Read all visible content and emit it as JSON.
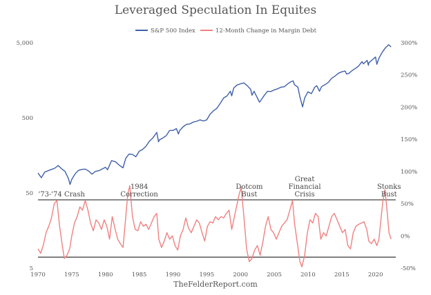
{
  "chart_data": {
    "type": "line",
    "title": "Leveraged Speculation In Equites",
    "source": "TheFelderReport.com",
    "legend_placement": "top-center",
    "series": [
      {
        "name": "S&P 500 Index",
        "color": "#3d5fa8",
        "axis": "left",
        "scale": "log",
        "points": [
          [
            1970.0,
            92
          ],
          [
            1970.5,
            80
          ],
          [
            1971.0,
            95
          ],
          [
            1971.5,
            99
          ],
          [
            1972.0,
            103
          ],
          [
            1972.5,
            107
          ],
          [
            1973.0,
            116
          ],
          [
            1973.5,
            105
          ],
          [
            1974.0,
            97
          ],
          [
            1974.5,
            78
          ],
          [
            1974.75,
            65
          ],
          [
            1975.0,
            76
          ],
          [
            1975.5,
            90
          ],
          [
            1976.0,
            100
          ],
          [
            1976.5,
            103
          ],
          [
            1977.0,
            104
          ],
          [
            1977.5,
            98
          ],
          [
            1978.0,
            89
          ],
          [
            1978.5,
            97
          ],
          [
            1979.0,
            99
          ],
          [
            1979.5,
            104
          ],
          [
            1980.0,
            110
          ],
          [
            1980.3,
            102
          ],
          [
            1980.9,
            135
          ],
          [
            1981.5,
            130
          ],
          [
            1982.0,
            118
          ],
          [
            1982.6,
            108
          ],
          [
            1983.0,
            145
          ],
          [
            1983.5,
            165
          ],
          [
            1984.0,
            163
          ],
          [
            1984.5,
            152
          ],
          [
            1985.0,
            180
          ],
          [
            1985.5,
            190
          ],
          [
            1986.0,
            210
          ],
          [
            1986.5,
            245
          ],
          [
            1987.0,
            270
          ],
          [
            1987.6,
            320
          ],
          [
            1987.85,
            240
          ],
          [
            1988.0,
            255
          ],
          [
            1988.5,
            270
          ],
          [
            1989.0,
            290
          ],
          [
            1989.5,
            340
          ],
          [
            1990.0,
            340
          ],
          [
            1990.5,
            360
          ],
          [
            1990.8,
            305
          ],
          [
            1991.0,
            340
          ],
          [
            1991.5,
            380
          ],
          [
            1992.0,
            410
          ],
          [
            1992.5,
            415
          ],
          [
            1993.0,
            440
          ],
          [
            1993.5,
            450
          ],
          [
            1994.0,
            470
          ],
          [
            1994.5,
            455
          ],
          [
            1995.0,
            470
          ],
          [
            1995.5,
            560
          ],
          [
            1996.0,
            620
          ],
          [
            1996.5,
            670
          ],
          [
            1997.0,
            780
          ],
          [
            1997.5,
            920
          ],
          [
            1998.0,
            980
          ],
          [
            1998.5,
            1130
          ],
          [
            1998.7,
            980
          ],
          [
            1999.0,
            1250
          ],
          [
            1999.5,
            1370
          ],
          [
            2000.0,
            1420
          ],
          [
            2000.5,
            1460
          ],
          [
            2001.0,
            1340
          ],
          [
            2001.5,
            1200
          ],
          [
            2001.7,
            1000
          ],
          [
            2002.0,
            1130
          ],
          [
            2002.5,
            920
          ],
          [
            2002.8,
            810
          ],
          [
            2003.0,
            850
          ],
          [
            2003.5,
            990
          ],
          [
            2004.0,
            1130
          ],
          [
            2004.5,
            1120
          ],
          [
            2005.0,
            1180
          ],
          [
            2005.5,
            1220
          ],
          [
            2006.0,
            1280
          ],
          [
            2006.5,
            1300
          ],
          [
            2007.0,
            1420
          ],
          [
            2007.5,
            1520
          ],
          [
            2007.8,
            1550
          ],
          [
            2008.0,
            1380
          ],
          [
            2008.5,
            1280
          ],
          [
            2008.8,
            950
          ],
          [
            2009.2,
            700
          ],
          [
            2009.5,
            920
          ],
          [
            2010.0,
            1110
          ],
          [
            2010.5,
            1050
          ],
          [
            2011.0,
            1280
          ],
          [
            2011.3,
            1340
          ],
          [
            2011.7,
            1130
          ],
          [
            2012.0,
            1300
          ],
          [
            2012.5,
            1380
          ],
          [
            2013.0,
            1480
          ],
          [
            2013.5,
            1680
          ],
          [
            2014.0,
            1800
          ],
          [
            2014.5,
            1960
          ],
          [
            2015.0,
            2050
          ],
          [
            2015.5,
            2100
          ],
          [
            2015.7,
            1920
          ],
          [
            2016.0,
            1940
          ],
          [
            2016.5,
            2120
          ],
          [
            2017.0,
            2270
          ],
          [
            2017.5,
            2450
          ],
          [
            2018.0,
            2800
          ],
          [
            2018.2,
            2620
          ],
          [
            2018.75,
            2910
          ],
          [
            2018.95,
            2500
          ],
          [
            2019.0,
            2700
          ],
          [
            2019.5,
            2950
          ],
          [
            2020.0,
            3230
          ],
          [
            2020.2,
            2580
          ],
          [
            2020.5,
            3100
          ],
          [
            2021.0,
            3750
          ],
          [
            2021.5,
            4300
          ],
          [
            2021.95,
            4700
          ],
          [
            2022.3,
            4400
          ]
        ]
      },
      {
        "name": "12-Month Change in Margin Debt",
        "color": "#f08080",
        "axis": "right",
        "points": [
          [
            1970.0,
            -20
          ],
          [
            1970.4,
            -27
          ],
          [
            1970.8,
            -14
          ],
          [
            1971.2,
            5
          ],
          [
            1971.6,
            15
          ],
          [
            1972.0,
            28
          ],
          [
            1972.4,
            50
          ],
          [
            1972.8,
            55
          ],
          [
            1973.2,
            15
          ],
          [
            1973.6,
            -15
          ],
          [
            1973.9,
            -35
          ],
          [
            1974.3,
            -30
          ],
          [
            1974.7,
            -20
          ],
          [
            1975.0,
            0
          ],
          [
            1975.4,
            20
          ],
          [
            1975.8,
            30
          ],
          [
            1976.2,
            45
          ],
          [
            1976.6,
            40
          ],
          [
            1977.0,
            55
          ],
          [
            1977.4,
            40
          ],
          [
            1977.8,
            20
          ],
          [
            1978.2,
            8
          ],
          [
            1978.6,
            25
          ],
          [
            1979.0,
            20
          ],
          [
            1979.4,
            10
          ],
          [
            1979.8,
            25
          ],
          [
            1980.2,
            15
          ],
          [
            1980.6,
            -5
          ],
          [
            1981.0,
            30
          ],
          [
            1981.4,
            12
          ],
          [
            1981.8,
            -5
          ],
          [
            1982.2,
            -12
          ],
          [
            1982.6,
            -18
          ],
          [
            1983.0,
            30
          ],
          [
            1983.3,
            65
          ],
          [
            1983.6,
            78
          ],
          [
            1984.0,
            30
          ],
          [
            1984.4,
            10
          ],
          [
            1984.8,
            8
          ],
          [
            1985.2,
            22
          ],
          [
            1985.6,
            15
          ],
          [
            1986.0,
            18
          ],
          [
            1986.4,
            10
          ],
          [
            1986.8,
            20
          ],
          [
            1987.2,
            30
          ],
          [
            1987.6,
            35
          ],
          [
            1987.9,
            -5
          ],
          [
            1988.3,
            -18
          ],
          [
            1988.7,
            -8
          ],
          [
            1989.1,
            5
          ],
          [
            1989.5,
            -5
          ],
          [
            1989.9,
            0
          ],
          [
            1990.3,
            -15
          ],
          [
            1990.7,
            -22
          ],
          [
            1991.1,
            0
          ],
          [
            1991.5,
            10
          ],
          [
            1991.9,
            28
          ],
          [
            1992.3,
            12
          ],
          [
            1992.7,
            5
          ],
          [
            1993.1,
            15
          ],
          [
            1993.5,
            25
          ],
          [
            1993.9,
            20
          ],
          [
            1994.3,
            5
          ],
          [
            1994.7,
            -8
          ],
          [
            1995.1,
            15
          ],
          [
            1995.5,
            22
          ],
          [
            1995.9,
            20
          ],
          [
            1996.3,
            30
          ],
          [
            1996.7,
            25
          ],
          [
            1997.1,
            30
          ],
          [
            1997.5,
            28
          ],
          [
            1997.9,
            35
          ],
          [
            1998.3,
            40
          ],
          [
            1998.7,
            10
          ],
          [
            1999.1,
            30
          ],
          [
            1999.5,
            50
          ],
          [
            1999.8,
            65
          ],
          [
            2000.1,
            75
          ],
          [
            2000.5,
            30
          ],
          [
            2000.9,
            -20
          ],
          [
            2001.3,
            -40
          ],
          [
            2001.7,
            -35
          ],
          [
            2002.1,
            -22
          ],
          [
            2002.5,
            -15
          ],
          [
            2002.9,
            -30
          ],
          [
            2003.3,
            -10
          ],
          [
            2003.7,
            15
          ],
          [
            2004.1,
            30
          ],
          [
            2004.5,
            10
          ],
          [
            2004.9,
            5
          ],
          [
            2005.3,
            -5
          ],
          [
            2005.7,
            5
          ],
          [
            2006.1,
            15
          ],
          [
            2006.5,
            20
          ],
          [
            2006.9,
            25
          ],
          [
            2007.3,
            40
          ],
          [
            2007.7,
            55
          ],
          [
            2008.0,
            20
          ],
          [
            2008.4,
            -10
          ],
          [
            2008.8,
            -40
          ],
          [
            2009.1,
            -48
          ],
          [
            2009.5,
            -30
          ],
          [
            2009.9,
            5
          ],
          [
            2010.3,
            25
          ],
          [
            2010.7,
            20
          ],
          [
            2011.1,
            35
          ],
          [
            2011.5,
            30
          ],
          [
            2011.9,
            -5
          ],
          [
            2012.3,
            5
          ],
          [
            2012.7,
            0
          ],
          [
            2013.1,
            15
          ],
          [
            2013.5,
            30
          ],
          [
            2013.9,
            35
          ],
          [
            2014.3,
            25
          ],
          [
            2014.7,
            15
          ],
          [
            2015.1,
            5
          ],
          [
            2015.5,
            10
          ],
          [
            2015.9,
            -15
          ],
          [
            2016.3,
            -20
          ],
          [
            2016.7,
            5
          ],
          [
            2017.1,
            15
          ],
          [
            2017.5,
            18
          ],
          [
            2017.9,
            20
          ],
          [
            2018.3,
            22
          ],
          [
            2018.7,
            10
          ],
          [
            2019.0,
            -8
          ],
          [
            2019.4,
            -12
          ],
          [
            2019.8,
            -5
          ],
          [
            2020.2,
            -15
          ],
          [
            2020.5,
            -5
          ],
          [
            2020.8,
            25
          ],
          [
            2021.1,
            55
          ],
          [
            2021.4,
            72
          ],
          [
            2021.7,
            40
          ],
          [
            2022.0,
            5
          ],
          [
            2022.3,
            -5
          ]
        ]
      }
    ],
    "left_axis": {
      "scale": "log",
      "range": [
        5,
        5000
      ],
      "tick_labels": [
        "5",
        "50",
        "500",
        "5,000"
      ]
    },
    "right_axis": {
      "range": [
        -50,
        300
      ],
      "tick_labels": [
        "-50%",
        "0%",
        "50%",
        "100%",
        "150%",
        "200%",
        "250%",
        "300%"
      ]
    },
    "x_axis": {
      "range": [
        1970,
        2023
      ],
      "tick_labels": [
        "1970",
        "1975",
        "1980",
        "1985",
        "1990",
        "1995",
        "2000",
        "2005",
        "2010",
        "2015",
        "2020"
      ]
    },
    "reference_lines": [
      56,
      -33
    ],
    "annotations": [
      {
        "x": 1973.5,
        "lines": [
          "'73-'74 Crash"
        ]
      },
      {
        "x": 1985.0,
        "lines": [
          "1984",
          "Correction"
        ]
      },
      {
        "x": 2001.3,
        "lines": [
          "Dotcom",
          "Bust"
        ]
      },
      {
        "x": 2009.5,
        "lines": [
          "Great",
          "Financial",
          "Crisis"
        ]
      },
      {
        "x": 2022.0,
        "lines": [
          "Stonks",
          "Bust"
        ]
      }
    ],
    "grid": false
  }
}
